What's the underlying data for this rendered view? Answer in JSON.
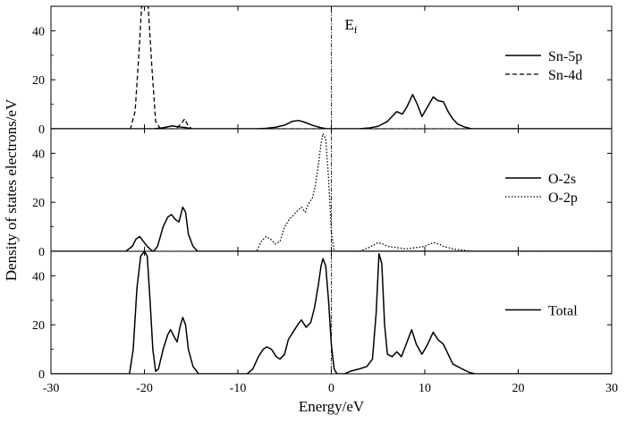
{
  "chart_data": {
    "type": "line",
    "xlabel": "Energy/eV",
    "ylabel": "Density of states electrons/eV",
    "xlim": [
      -30,
      30
    ],
    "xticks": [
      -30,
      -20,
      -10,
      0,
      10,
      20,
      30
    ],
    "fermi_level": {
      "label": "E",
      "subscript": "f",
      "x": 0
    },
    "grid": false,
    "panels": [
      {
        "id": "sn",
        "ylim": [
          0,
          50
        ],
        "yticks": [
          0,
          20,
          40
        ],
        "legend_position": "right",
        "series": [
          {
            "name": "Sn-5p",
            "style": "solid",
            "points": [
              [
                -30,
                0
              ],
              [
                -19,
                0
              ],
              [
                -18,
                0.4
              ],
              [
                -17,
                1.2
              ],
              [
                -16.4,
                0.8
              ],
              [
                -15.6,
                0.5
              ],
              [
                -15,
                0
              ],
              [
                -8,
                0
              ],
              [
                -7,
                0.2
              ],
              [
                -6,
                0.6
              ],
              [
                -5,
                1.5
              ],
              [
                -4.2,
                3
              ],
              [
                -3.5,
                3.4
              ],
              [
                -2.8,
                2.6
              ],
              [
                -2,
                1.4
              ],
              [
                -1.2,
                0.5
              ],
              [
                -0.5,
                0
              ],
              [
                3,
                0
              ],
              [
                4,
                0.3
              ],
              [
                5,
                1
              ],
              [
                6,
                3
              ],
              [
                7,
                7
              ],
              [
                7.6,
                6
              ],
              [
                8.1,
                9
              ],
              [
                8.7,
                14
              ],
              [
                9.2,
                10
              ],
              [
                9.7,
                5
              ],
              [
                10.3,
                9
              ],
              [
                10.9,
                13
              ],
              [
                11.4,
                11.5
              ],
              [
                12,
                11
              ],
              [
                12.5,
                7
              ],
              [
                13,
                4
              ],
              [
                13.5,
                2
              ],
              [
                14.2,
                0.8
              ],
              [
                15,
                0
              ],
              [
                30,
                0
              ]
            ]
          },
          {
            "name": "Sn-4d",
            "style": "dashed",
            "points": [
              [
                -30,
                0
              ],
              [
                -21.5,
                0
              ],
              [
                -21,
                7
              ],
              [
                -20.6,
                30
              ],
              [
                -20.3,
                50
              ],
              [
                -19.6,
                50
              ],
              [
                -19.2,
                25
              ],
              [
                -18.8,
                3
              ],
              [
                -18.3,
                0
              ],
              [
                -16.6,
                0
              ],
              [
                -16.1,
                2
              ],
              [
                -15.7,
                4
              ],
              [
                -15.3,
                1
              ],
              [
                -14.9,
                0
              ],
              [
                30,
                0
              ]
            ]
          }
        ]
      },
      {
        "id": "o",
        "ylim": [
          0,
          50
        ],
        "yticks": [
          0,
          20,
          40
        ],
        "legend_position": "right",
        "series": [
          {
            "name": "O-2s",
            "style": "solid",
            "points": [
              [
                -30,
                0
              ],
              [
                -22,
                0
              ],
              [
                -21.3,
                2
              ],
              [
                -20.9,
                5
              ],
              [
                -20.5,
                6
              ],
              [
                -20.1,
                4
              ],
              [
                -19.7,
                2
              ],
              [
                -19.2,
                0.3
              ],
              [
                -19,
                0
              ],
              [
                -18.6,
                2
              ],
              [
                -18,
                10
              ],
              [
                -17.5,
                14
              ],
              [
                -17.1,
                15
              ],
              [
                -16.7,
                13
              ],
              [
                -16.3,
                12
              ],
              [
                -15.9,
                18
              ],
              [
                -15.6,
                16
              ],
              [
                -15.3,
                7
              ],
              [
                -14.8,
                2
              ],
              [
                -14.3,
                0
              ],
              [
                30,
                0
              ]
            ]
          },
          {
            "name": "O-2p",
            "style": "dotted",
            "points": [
              [
                -30,
                0
              ],
              [
                -8,
                0
              ],
              [
                -7.5,
                4
              ],
              [
                -7,
                6
              ],
              [
                -6.5,
                5
              ],
              [
                -6,
                3
              ],
              [
                -5.5,
                4
              ],
              [
                -5,
                10
              ],
              [
                -4.5,
                13
              ],
              [
                -4,
                15
              ],
              [
                -3.5,
                17
              ],
              [
                -3.2,
                18
              ],
              [
                -2.8,
                16
              ],
              [
                -2.5,
                19
              ],
              [
                -2,
                22
              ],
              [
                -1.7,
                27
              ],
              [
                -1.4,
                35
              ],
              [
                -1.1,
                44
              ],
              [
                -0.9,
                48
              ],
              [
                -0.6,
                46
              ],
              [
                -0.3,
                30
              ],
              [
                0,
                8
              ],
              [
                0.3,
                0
              ],
              [
                3,
                0
              ],
              [
                4,
                1.5
              ],
              [
                4.5,
                2.5
              ],
              [
                5,
                3.5
              ],
              [
                5.5,
                3
              ],
              [
                6,
                2
              ],
              [
                7,
                1.5
              ],
              [
                8,
                1
              ],
              [
                9,
                1.5
              ],
              [
                10,
                2
              ],
              [
                10.5,
                3
              ],
              [
                11,
                3.5
              ],
              [
                11.5,
                3
              ],
              [
                12,
                2
              ],
              [
                13,
                1
              ],
              [
                14,
                0.5
              ],
              [
                15,
                0
              ],
              [
                30,
                0
              ]
            ]
          }
        ]
      },
      {
        "id": "total",
        "ylim": [
          0,
          50
        ],
        "yticks": [
          0,
          20,
          40
        ],
        "legend_position": "right",
        "series": [
          {
            "name": "Total",
            "style": "solid",
            "points": [
              [
                -30,
                0
              ],
              [
                -21.6,
                0
              ],
              [
                -21.2,
                10
              ],
              [
                -20.8,
                35
              ],
              [
                -20.4,
                48
              ],
              [
                -20,
                50
              ],
              [
                -19.7,
                48
              ],
              [
                -19.4,
                30
              ],
              [
                -19.1,
                10
              ],
              [
                -18.8,
                1
              ],
              [
                -18.5,
                2
              ],
              [
                -18,
                10
              ],
              [
                -17.5,
                16
              ],
              [
                -17.2,
                18
              ],
              [
                -16.8,
                15
              ],
              [
                -16.5,
                13
              ],
              [
                -16.2,
                19
              ],
              [
                -15.9,
                23
              ],
              [
                -15.6,
                20
              ],
              [
                -15.3,
                10
              ],
              [
                -14.8,
                3
              ],
              [
                -14.2,
                0
              ],
              [
                -10,
                0
              ],
              [
                -9,
                0
              ],
              [
                -8.4,
                2
              ],
              [
                -7.8,
                7
              ],
              [
                -7.3,
                10
              ],
              [
                -6.9,
                11
              ],
              [
                -6.4,
                10
              ],
              [
                -5.9,
                7
              ],
              [
                -5.5,
                6
              ],
              [
                -5,
                8
              ],
              [
                -4.6,
                14
              ],
              [
                -4.1,
                17
              ],
              [
                -3.6,
                20
              ],
              [
                -3.2,
                22
              ],
              [
                -2.7,
                19
              ],
              [
                -2.2,
                21
              ],
              [
                -1.8,
                27
              ],
              [
                -1.4,
                36
              ],
              [
                -1.1,
                44
              ],
              [
                -0.9,
                47
              ],
              [
                -0.6,
                44
              ],
              [
                -0.3,
                30
              ],
              [
                0,
                12
              ],
              [
                0.3,
                2
              ],
              [
                0.6,
                0
              ],
              [
                1.4,
                0
              ],
              [
                2,
                1
              ],
              [
                3,
                2
              ],
              [
                3.8,
                3
              ],
              [
                4.4,
                6
              ],
              [
                4.8,
                25
              ],
              [
                5.1,
                49
              ],
              [
                5.4,
                45
              ],
              [
                5.7,
                20
              ],
              [
                6,
                8
              ],
              [
                6.5,
                7
              ],
              [
                7,
                9
              ],
              [
                7.5,
                7
              ],
              [
                8,
                12
              ],
              [
                8.6,
                18
              ],
              [
                9.1,
                12
              ],
              [
                9.7,
                8
              ],
              [
                10.3,
                12
              ],
              [
                10.9,
                17
              ],
              [
                11.4,
                14
              ],
              [
                12,
                12
              ],
              [
                12.5,
                8
              ],
              [
                13,
                4
              ],
              [
                13.5,
                3
              ],
              [
                14,
                2
              ],
              [
                14.8,
                0.5
              ],
              [
                15.4,
                0
              ],
              [
                30,
                0
              ]
            ]
          }
        ]
      }
    ]
  }
}
